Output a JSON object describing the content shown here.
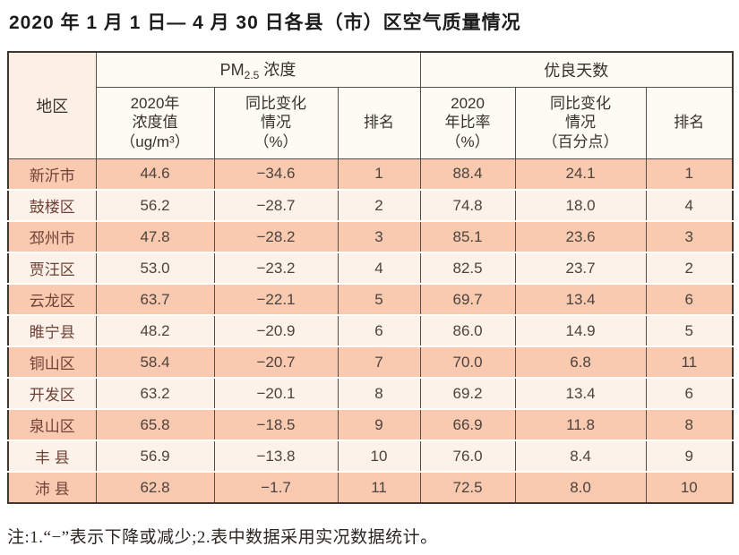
{
  "title": "2020 年 1 月 1 日— 4 月 30 日各县（市）区空气质量情况",
  "note": "注:1.“−”表示下降或减少;2.表中数据采用实况数据统计。",
  "table": {
    "corner_header": "地区",
    "group_pm": {
      "prefix": "PM",
      "sub": "2.5",
      "suffix": " 浓度"
    },
    "group_good": "优良天数",
    "sub_headers": {
      "pm_value": "2020年\n浓度值\n（ug/m³）",
      "pm_change": "同比变化\n情况\n（%）",
      "pm_rank": "排名",
      "good_rate": "2020\n年比率\n（%）",
      "good_change": "同比变化\n情况\n（百分点）",
      "good_rank": "排名"
    },
    "rows": [
      {
        "region": "新沂市",
        "pm_value": "44.6",
        "pm_change": "−34.6",
        "pm_rank": "1",
        "good_rate": "88.4",
        "good_change": "24.1",
        "good_rank": "1"
      },
      {
        "region": "鼓楼区",
        "pm_value": "56.2",
        "pm_change": "−28.7",
        "pm_rank": "2",
        "good_rate": "74.8",
        "good_change": "18.0",
        "good_rank": "4"
      },
      {
        "region": "邳州市",
        "pm_value": "47.8",
        "pm_change": "−28.2",
        "pm_rank": "3",
        "good_rate": "85.1",
        "good_change": "23.6",
        "good_rank": "3"
      },
      {
        "region": "贾汪区",
        "pm_value": "53.0",
        "pm_change": "−23.2",
        "pm_rank": "4",
        "good_rate": "82.5",
        "good_change": "23.7",
        "good_rank": "2"
      },
      {
        "region": "云龙区",
        "pm_value": "63.7",
        "pm_change": "−22.1",
        "pm_rank": "5",
        "good_rate": "69.7",
        "good_change": "13.4",
        "good_rank": "6"
      },
      {
        "region": "睢宁县",
        "pm_value": "48.2",
        "pm_change": "−20.9",
        "pm_rank": "6",
        "good_rate": "86.0",
        "good_change": "14.9",
        "good_rank": "5"
      },
      {
        "region": "铜山区",
        "pm_value": "58.4",
        "pm_change": "−20.7",
        "pm_rank": "7",
        "good_rate": "70.0",
        "good_change": "6.8",
        "good_rank": "11"
      },
      {
        "region": "开发区",
        "pm_value": "63.2",
        "pm_change": "−20.1",
        "pm_rank": "8",
        "good_rate": "69.2",
        "good_change": "13.4",
        "good_rank": "6"
      },
      {
        "region": "泉山区",
        "pm_value": "65.8",
        "pm_change": "−18.5",
        "pm_rank": "9",
        "good_rate": "66.9",
        "good_change": "11.8",
        "good_rank": "8"
      },
      {
        "region": "丰 县",
        "pm_value": "56.9",
        "pm_change": "−13.8",
        "pm_rank": "10",
        "good_rate": "76.0",
        "good_change": "8.4",
        "good_rank": "9"
      },
      {
        "region": "沛 县",
        "pm_value": "62.8",
        "pm_change": "−1.7",
        "pm_rank": "11",
        "good_rate": "72.5",
        "good_change": "8.0",
        "good_rank": "10"
      }
    ]
  },
  "colors": {
    "row_odd_bg": "#f9c9b0",
    "row_even_bg": "#fdf2ea",
    "corner_bg": "#fcefe5",
    "header_bg": "#fefaf4",
    "border_outer": "#3e3831",
    "border_inner": "#564e46",
    "region_text": "#6e4236",
    "value_text": "#4b433d"
  }
}
